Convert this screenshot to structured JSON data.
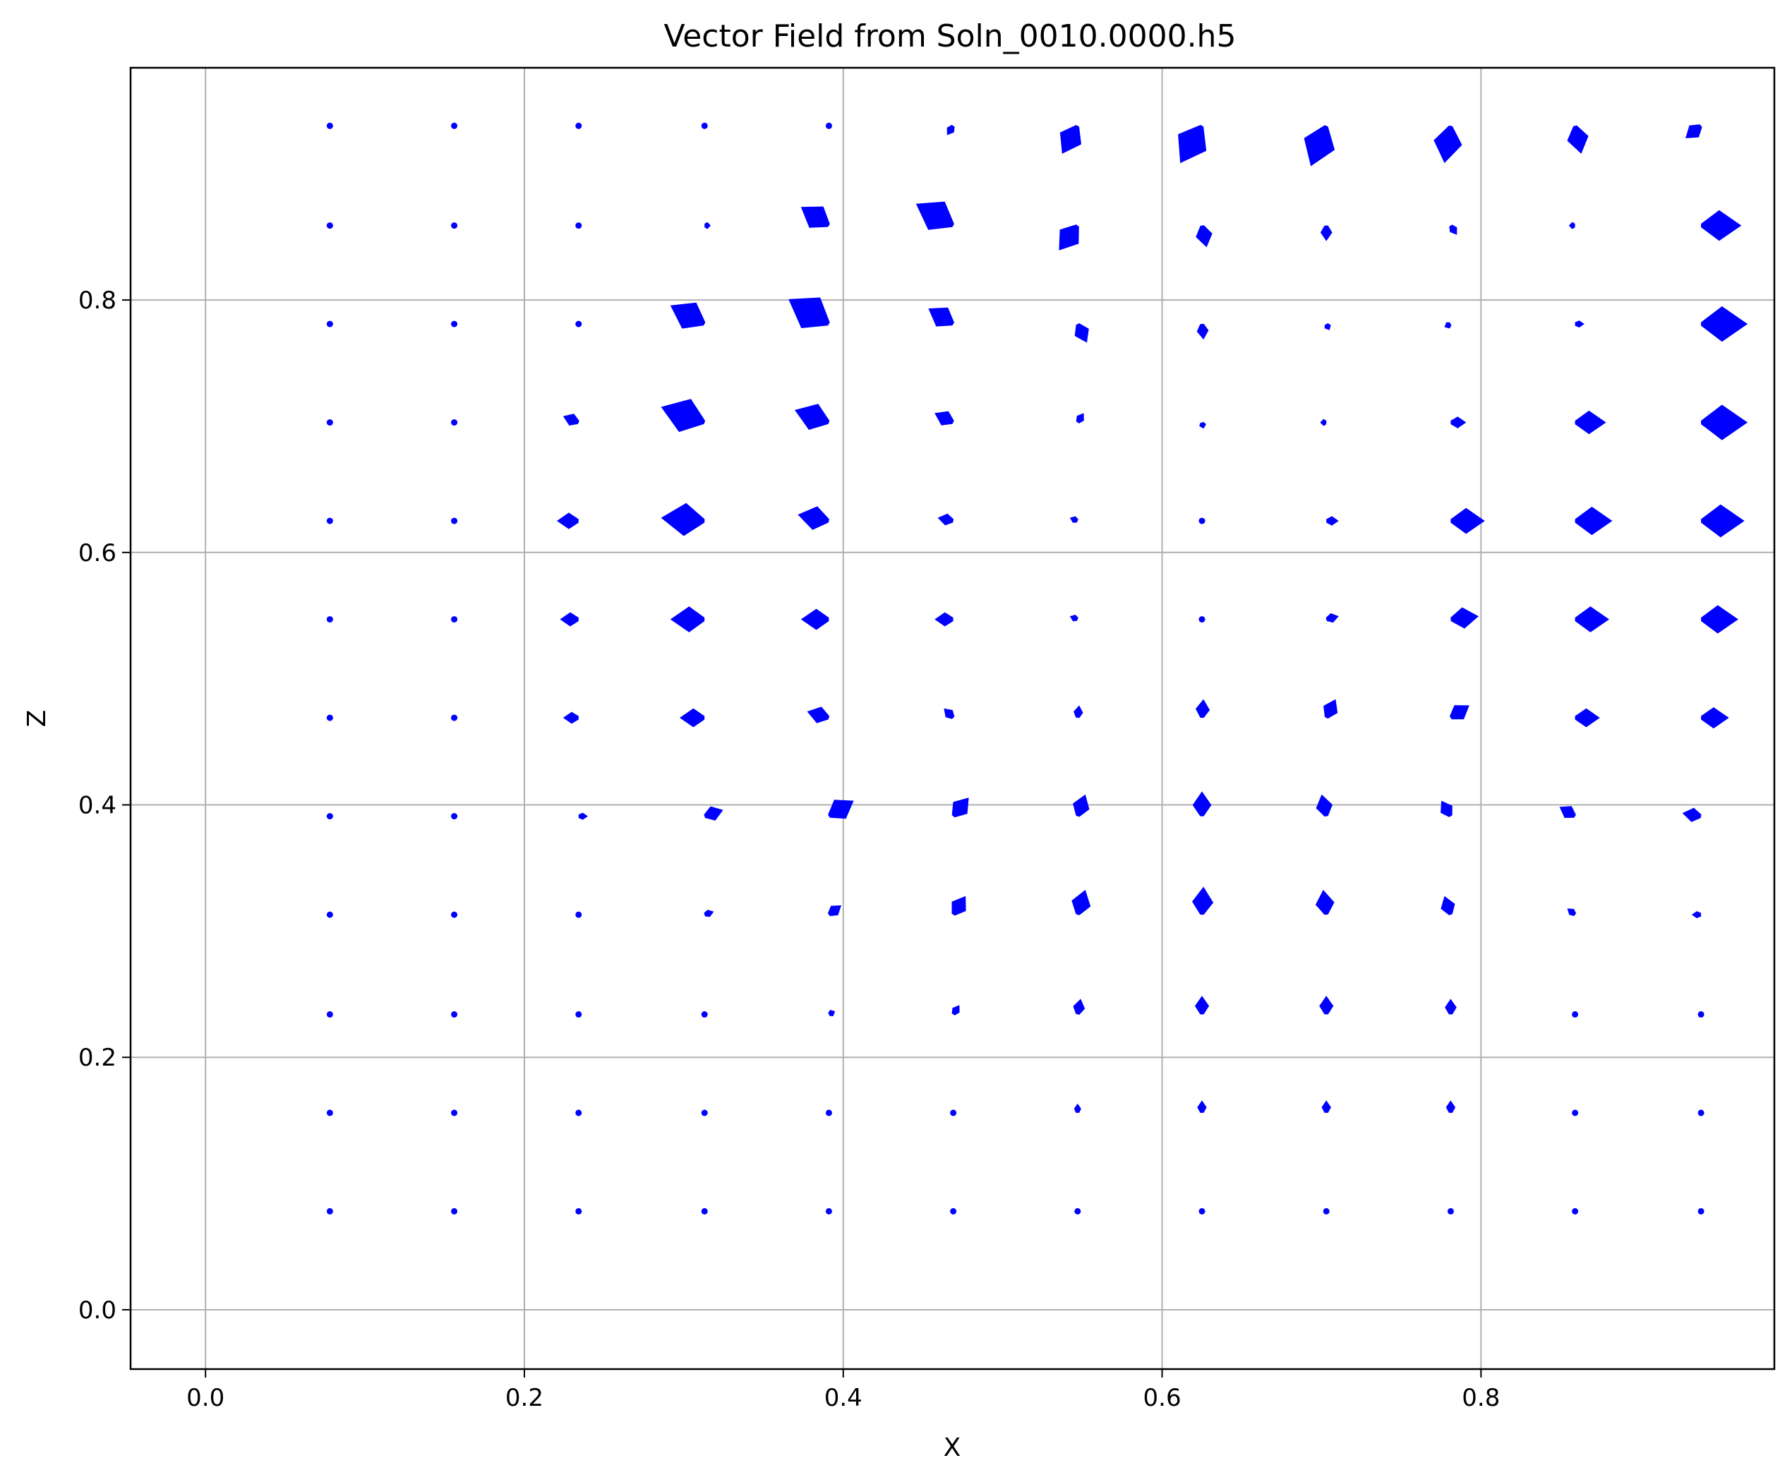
{
  "chart_data": {
    "type": "quiver",
    "title": "Vector Field from Soln_0010.0000.h5",
    "xlabel": "X",
    "ylabel": "Z",
    "xlim": [
      -0.047,
      0.984
    ],
    "ylim": [
      -0.047,
      0.984
    ],
    "xticks": [
      "0.0",
      "0.2",
      "0.4",
      "0.6",
      "0.8"
    ],
    "yticks": [
      "0.0",
      "0.2",
      "0.4",
      "0.6",
      "0.8"
    ],
    "xtick_values": [
      0.0,
      0.2,
      0.4,
      0.6,
      0.8
    ],
    "ytick_values": [
      0.0,
      0.2,
      0.4,
      0.6,
      0.8
    ],
    "grid": true,
    "color": "#0000ff",
    "x": [
      0.078,
      0.156,
      0.234,
      0.313,
      0.391,
      0.469,
      0.547,
      0.625,
      0.703,
      0.781,
      0.859,
      0.938
    ],
    "z": [
      0.078,
      0.156,
      0.234,
      0.313,
      0.391,
      0.469,
      0.547,
      0.625,
      0.703,
      0.781,
      0.859,
      0.938
    ],
    "u": [
      [
        0,
        0,
        0,
        0,
        0,
        0,
        0,
        0,
        0,
        0,
        0,
        0
      ],
      [
        0,
        0,
        0,
        0,
        0,
        0,
        0,
        0,
        0,
        0,
        0,
        0
      ],
      [
        0,
        0,
        0,
        0,
        0.004,
        0.004,
        0.002,
        0,
        0,
        0,
        0,
        0
      ],
      [
        0,
        0,
        0,
        0.006,
        0.008,
        0.008,
        0.005,
        0.001,
        -0.002,
        -0.004,
        -0.005,
        -0.006
      ],
      [
        0,
        0,
        0.006,
        0.012,
        0.016,
        0.01,
        0.005,
        0,
        -0.003,
        -0.006,
        -0.01,
        -0.012
      ],
      [
        0,
        0,
        -0.01,
        -0.016,
        -0.014,
        -0.006,
        0.001,
        0.001,
        0.006,
        0.012,
        0.016,
        0.018
      ],
      [
        0,
        0,
        -0.012,
        -0.022,
        -0.018,
        -0.012,
        -0.005,
        0,
        0.008,
        0.018,
        0.022,
        0.024
      ],
      [
        0,
        0,
        -0.014,
        -0.028,
        -0.02,
        -0.01,
        -0.005,
        0,
        0.008,
        0.022,
        0.024,
        0.028
      ],
      [
        0,
        0,
        -0.01,
        -0.028,
        -0.022,
        -0.012,
        0.004,
        0.001,
        -0.004,
        0.01,
        0.02,
        0.03
      ],
      [
        0,
        0,
        0,
        -0.022,
        -0.026,
        -0.016,
        0.006,
        0.001,
        0.002,
        -0.004,
        0.006,
        0.03
      ],
      [
        0,
        0,
        0,
        0.004,
        -0.018,
        -0.024,
        -0.012,
        0.003,
        0,
        0.004,
        -0.004,
        0.026
      ],
      [
        0,
        0,
        0,
        0,
        0,
        -0.004,
        -0.01,
        -0.014,
        -0.01,
        -0.004,
        0.004,
        -0.01
      ]
    ],
    "w": [
      [
        0,
        0,
        0,
        0,
        0,
        0,
        0,
        0,
        0,
        0,
        0,
        0
      ],
      [
        0,
        0,
        0,
        0,
        0,
        0.002,
        0.006,
        0.008,
        0.008,
        0.008,
        0,
        0
      ],
      [
        0,
        0,
        0,
        0,
        0.002,
        0.006,
        0.01,
        0.012,
        0.012,
        0.01,
        0,
        0
      ],
      [
        0,
        0,
        0,
        0.002,
        0.006,
        0.012,
        0.016,
        0.018,
        0.016,
        0.012,
        0.004,
        0
      ],
      [
        0,
        0,
        0,
        0.004,
        0.01,
        0.012,
        0.014,
        0.016,
        0.014,
        0.01,
        0.006,
        0.002
      ],
      [
        0,
        0,
        0,
        0,
        0.004,
        0.006,
        0.008,
        0.012,
        0.012,
        0.008,
        0,
        0
      ],
      [
        0,
        0,
        0,
        0,
        0,
        0,
        0.002,
        0,
        0.002,
        0.002,
        0,
        0
      ],
      [
        0,
        0,
        0,
        0.002,
        0.004,
        0.002,
        0.002,
        0,
        0,
        0,
        0,
        0
      ],
      [
        0,
        0,
        0.004,
        0.01,
        0.008,
        0.006,
        0.006,
        -0.004,
        0,
        0,
        0,
        0
      ],
      [
        0,
        0,
        0,
        0.012,
        0.016,
        0.01,
        -0.012,
        -0.01,
        -0.004,
        -0.002,
        0,
        0
      ],
      [
        0,
        0,
        0,
        0,
        0.012,
        0.014,
        -0.016,
        -0.014,
        -0.01,
        -0.006,
        0,
        0
      ],
      [
        0,
        0,
        0,
        0,
        0,
        -0.006,
        -0.018,
        -0.024,
        -0.026,
        -0.024,
        -0.018,
        -0.008
      ]
    ]
  }
}
